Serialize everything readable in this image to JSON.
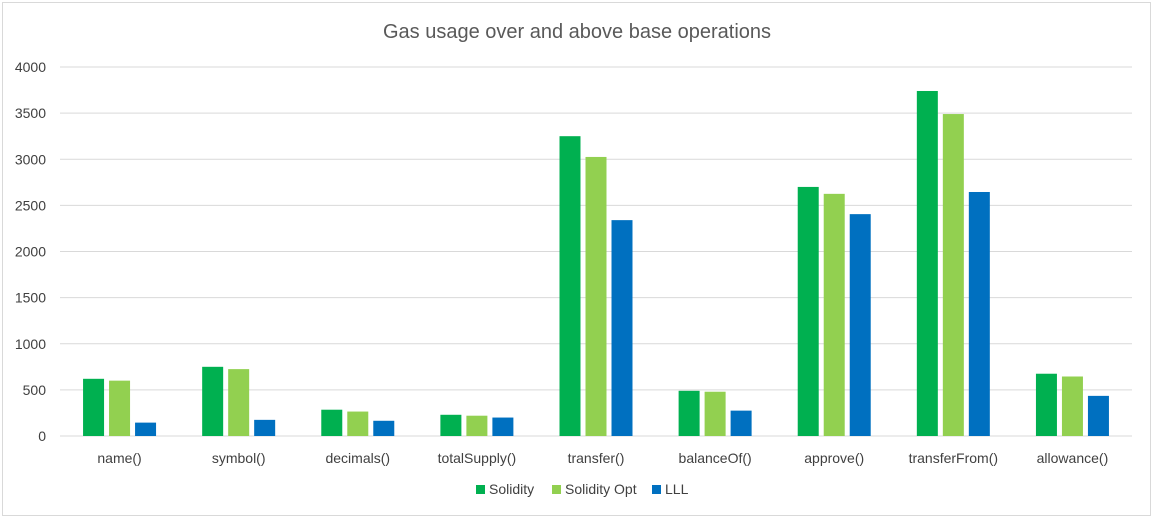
{
  "chart_data": {
    "type": "bar",
    "title": "Gas usage over and above base operations",
    "xlabel": "",
    "ylabel": "",
    "ylim": [
      0,
      4000
    ],
    "yticks": [
      "0",
      "500",
      "1000",
      "1500",
      "2000",
      "2500",
      "3000",
      "3500",
      "4000"
    ],
    "grid": true,
    "legend_position": "bottom",
    "categories": [
      "name()",
      "symbol()",
      "decimals()",
      "totalSupply()",
      "transfer()",
      "balanceOf()",
      "approve()",
      "transferFrom()",
      "allowance()"
    ],
    "series": [
      {
        "name": "Solidity",
        "color": "#00b050",
        "values": [
          620,
          750,
          285,
          230,
          3250,
          490,
          2700,
          3740,
          675
        ]
      },
      {
        "name": "Solidity Opt",
        "color": "#92d050",
        "values": [
          600,
          725,
          265,
          220,
          3025,
          480,
          2625,
          3490,
          645
        ]
      },
      {
        "name": "LLL",
        "color": "#0070c0",
        "values": [
          145,
          175,
          165,
          200,
          2340,
          275,
          2405,
          2645,
          435
        ]
      }
    ]
  }
}
